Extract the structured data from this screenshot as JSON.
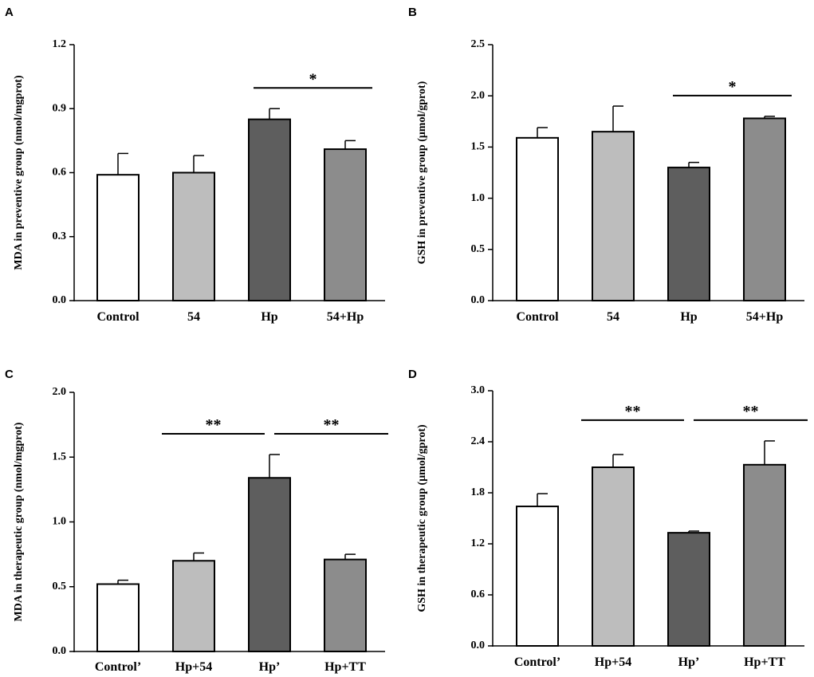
{
  "colors": {
    "control": "#ffffff",
    "treatment_light": "#bdbdbd",
    "hp_dark": "#5e5e5e",
    "combo_mid": "#8c8c8c",
    "axis": "#000000"
  },
  "chart_data": [
    {
      "type": "bar",
      "panel": "A",
      "ylabel": "MDA in preventive group (nmol/mgprot)",
      "ylim": [
        0,
        1.2
      ],
      "yticks": [
        "0.0",
        "0.3",
        "0.6",
        "0.9",
        "1.2"
      ],
      "categories": [
        "Control",
        "54",
        "Hp",
        "54+Hp"
      ],
      "values": [
        0.59,
        0.6,
        0.85,
        0.71
      ],
      "errors": [
        0.1,
        0.08,
        0.05,
        0.04
      ],
      "significance": [
        {
          "from": 2,
          "to": 3,
          "label": "*"
        }
      ]
    },
    {
      "type": "bar",
      "panel": "B",
      "ylabel": "GSH in preventive group (μmol/gprot)",
      "ylim": [
        0,
        2.5
      ],
      "yticks": [
        "0.0",
        "0.5",
        "1.0",
        "1.5",
        "2.0",
        "2.5"
      ],
      "categories": [
        "Control",
        "54",
        "Hp",
        "54+Hp"
      ],
      "values": [
        1.59,
        1.65,
        1.3,
        1.78
      ],
      "errors": [
        0.1,
        0.25,
        0.05,
        0.02
      ],
      "significance": [
        {
          "from": 2,
          "to": 3,
          "label": "*"
        }
      ]
    },
    {
      "type": "bar",
      "panel": "C",
      "ylabel": "MDA in therapeutic group (nmol/mgprot)",
      "ylim": [
        0,
        2.0
      ],
      "yticks": [
        "0.0",
        "0.5",
        "1.0",
        "1.5",
        "2.0"
      ],
      "categories": [
        "Control’",
        "Hp+54",
        "Hp’",
        "Hp+TT"
      ],
      "values": [
        0.52,
        0.7,
        1.34,
        0.71
      ],
      "errors": [
        0.03,
        0.06,
        0.18,
        0.04
      ],
      "significance": [
        {
          "from": 1,
          "to": 2,
          "label": "**"
        },
        {
          "from": 2,
          "to": 3,
          "label": "**"
        }
      ]
    },
    {
      "type": "bar",
      "panel": "D",
      "ylabel": "GSH in therapeutic group (μmol/gprot)",
      "ylim": [
        0,
        3.0
      ],
      "yticks": [
        "0.0",
        "0.6",
        "1.2",
        "1.8",
        "2.4",
        "3.0"
      ],
      "categories": [
        "Control’",
        "Hp+54",
        "Hp’",
        "Hp+TT"
      ],
      "values": [
        1.64,
        2.1,
        1.33,
        2.13
      ],
      "errors": [
        0.15,
        0.15,
        0.02,
        0.28
      ],
      "significance": [
        {
          "from": 1,
          "to": 2,
          "label": "**"
        },
        {
          "from": 2,
          "to": 3,
          "label": "**"
        }
      ]
    }
  ]
}
